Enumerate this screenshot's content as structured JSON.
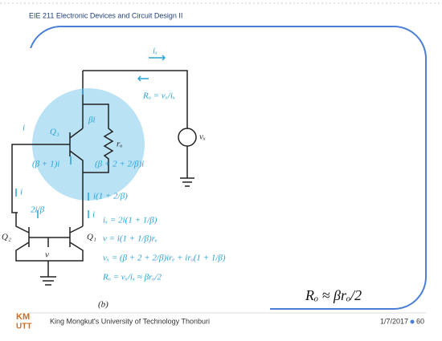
{
  "header": {
    "title": "EIE 211 Electronic Devices and Circuit Design II"
  },
  "circuit": {
    "ix": "iₓ",
    "ro_def": "Rₒ = vₓ/iₓ",
    "beta_i": "βi",
    "q3": "Q₃",
    "ro": "rₒ",
    "vx": "vₓ",
    "i_base": "i",
    "beta1_i": "(β + 1)i",
    "emit_i": "(β + 2 + 2/β)i",
    "i_sum": "i(1 + 2/β)",
    "two_i_beta": "2i/β",
    "i_q1": "i",
    "i_left": "i",
    "q2": "Q₂",
    "q1": "Q₁",
    "v": "v",
    "caption": "(b)",
    "eq1": "iₓ = 2i(1 + 1/β)",
    "eq2": "v = i(1 + 1/β)rₑ",
    "eq3": "vₓ = (β + 2 + 2/β)irₑ + irₒ(1 + 1/β)",
    "eq4": "Rₒ = vₓ/iₓ ≈ βrₒ/2"
  },
  "formula": "Rₒ ≈ βrₒ/2",
  "logo": {
    "top": "KM",
    "bottom": "UTT"
  },
  "footer": {
    "university": "King Mongkut's University of Technology Thonburi",
    "date": "1/7/2017",
    "page": "60"
  }
}
